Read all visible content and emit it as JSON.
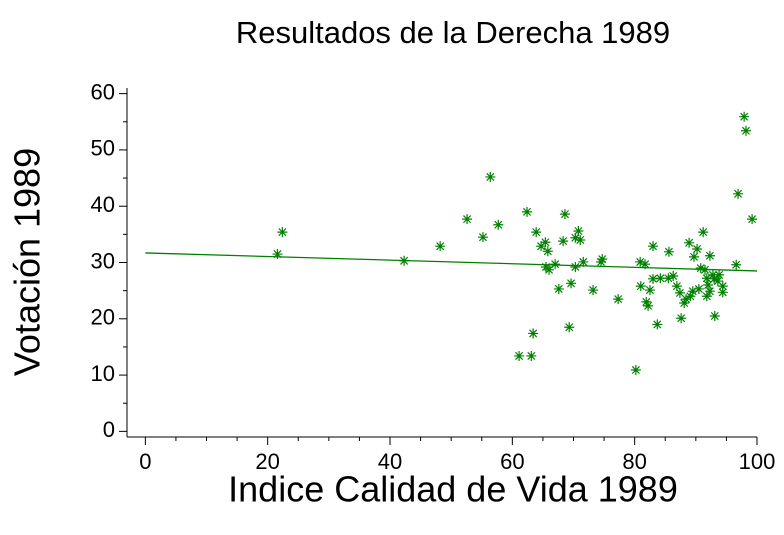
{
  "chart_data": {
    "type": "scatter",
    "title": "Resultados de la Derecha 1989",
    "xlabel": "Indice Calidad de Vida 1989",
    "ylabel": "Votación 1989",
    "color": "#008000",
    "marker": "asterisk",
    "xlim": [
      -3,
      100
    ],
    "ylim": [
      -1,
      61
    ],
    "xticks": [
      0,
      20,
      40,
      60,
      80,
      100
    ],
    "yticks": [
      0,
      10,
      20,
      30,
      40,
      50,
      60
    ],
    "xminorticks": [
      5,
      10,
      15,
      25,
      30,
      35,
      45,
      50,
      55,
      65,
      70,
      75,
      85,
      90,
      95
    ],
    "yminorticks": [
      5,
      15,
      25,
      35,
      45,
      55
    ],
    "x": [
      21.6,
      22.4,
      42.3,
      48.2,
      52.6,
      55.2,
      56.4,
      57.7,
      61.1,
      62.4,
      63.1,
      63.4,
      63.9,
      64.7,
      65.4,
      65.5,
      65.8,
      66.0,
      67.0,
      67.6,
      68.3,
      68.6,
      69.3,
      69.6,
      70.3,
      70.3,
      70.8,
      71.1,
      71.6,
      73.2,
      74.5,
      74.7,
      77.3,
      80.2,
      80.9,
      81.0,
      81.7,
      81.9,
      82.2,
      82.5,
      83.0,
      83.0,
      83.7,
      84.2,
      85.5,
      85.6,
      86.3,
      86.9,
      87.4,
      87.6,
      88.1,
      88.4,
      88.9,
      89.1,
      89.5,
      89.7,
      90.2,
      90.5,
      90.8,
      91.2,
      91.5,
      91.8,
      91.8,
      92.0,
      92.3,
      92.3,
      92.8,
      93.0,
      93.1,
      93.6,
      93.8,
      94.4,
      94.4,
      96.6,
      96.9,
      97.9,
      98.2,
      99.2
    ],
    "values": [
      31.5,
      35.4,
      30.3,
      32.9,
      37.7,
      34.5,
      45.2,
      36.7,
      13.4,
      39.0,
      13.4,
      17.4,
      35.4,
      32.9,
      33.6,
      29.2,
      32.0,
      28.7,
      29.7,
      25.3,
      33.8,
      38.6,
      18.5,
      26.3,
      34.4,
      29.2,
      35.6,
      34.0,
      30.1,
      25.1,
      30.1,
      30.6,
      23.5,
      10.9,
      30.1,
      25.8,
      29.7,
      23.0,
      22.3,
      25.1,
      27.1,
      32.9,
      19.0,
      27.2,
      27.2,
      31.9,
      27.6,
      25.8,
      24.6,
      20.1,
      22.8,
      23.5,
      33.5,
      24.0,
      24.9,
      31.0,
      32.4,
      25.3,
      29.0,
      35.4,
      28.7,
      27.2,
      24.0,
      26.0,
      24.9,
      31.2,
      27.8,
      27.1,
      20.5,
      26.7,
      27.8,
      24.7,
      25.8,
      29.6,
      42.2,
      55.9,
      53.4,
      37.7
    ],
    "fit_line": {
      "x": [
        0,
        100
      ],
      "values": [
        31.7,
        28.5
      ]
    }
  }
}
